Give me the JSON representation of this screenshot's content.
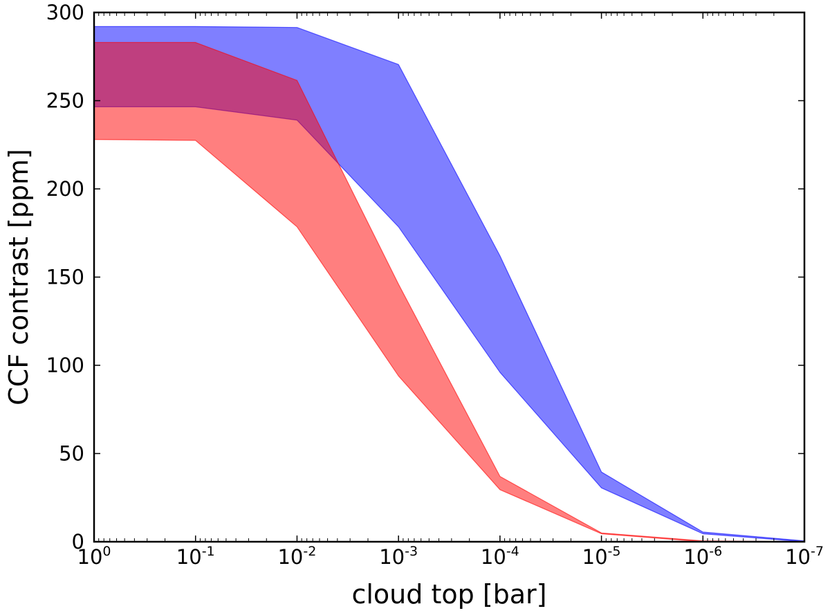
{
  "chart_data": {
    "type": "area",
    "title": "",
    "xlabel": "cloud top [bar]",
    "ylabel": "CCF contrast [ppm]",
    "x_scale": "log",
    "x_direction": "decreasing",
    "xlim": [
      1,
      1e-07
    ],
    "ylim": [
      0,
      300
    ],
    "grid": false,
    "legend": "none",
    "x": [
      1,
      0.1,
      0.01,
      0.001,
      0.0001,
      1e-05,
      1e-06,
      1e-07
    ],
    "x_ticks": [
      {
        "value": 1,
        "base": "10",
        "exp": "0"
      },
      {
        "value": 0.1,
        "base": "10",
        "exp": "-1"
      },
      {
        "value": 0.01,
        "base": "10",
        "exp": "-2"
      },
      {
        "value": 0.001,
        "base": "10",
        "exp": "-3"
      },
      {
        "value": 0.0001,
        "base": "10",
        "exp": "-4"
      },
      {
        "value": 1e-05,
        "base": "10",
        "exp": "-5"
      },
      {
        "value": 1e-06,
        "base": "10",
        "exp": "-6"
      },
      {
        "value": 1e-07,
        "base": "10",
        "exp": "-7"
      }
    ],
    "y_ticks": [
      {
        "value": 0,
        "label": "0"
      },
      {
        "value": 50,
        "label": "50"
      },
      {
        "value": 100,
        "label": "100"
      },
      {
        "value": 150,
        "label": "150"
      },
      {
        "value": 200,
        "label": "200"
      },
      {
        "value": 250,
        "label": "250"
      },
      {
        "value": 300,
        "label": "300"
      }
    ],
    "series": [
      {
        "color": "#0000ff",
        "upper": [
          292,
          292,
          291.5,
          270.5,
          162,
          39.5,
          5.5,
          0.5
        ],
        "lower": [
          246.5,
          246.5,
          239,
          178.5,
          96,
          30.5,
          4.5,
          0.0
        ]
      },
      {
        "color": "#ff0000",
        "upper": [
          283,
          283,
          261.5,
          146,
          37,
          5,
          0.5,
          0.0
        ],
        "lower": [
          228,
          227.5,
          178.5,
          94,
          29.5,
          4.5,
          0.0,
          0.0
        ]
      }
    ]
  }
}
